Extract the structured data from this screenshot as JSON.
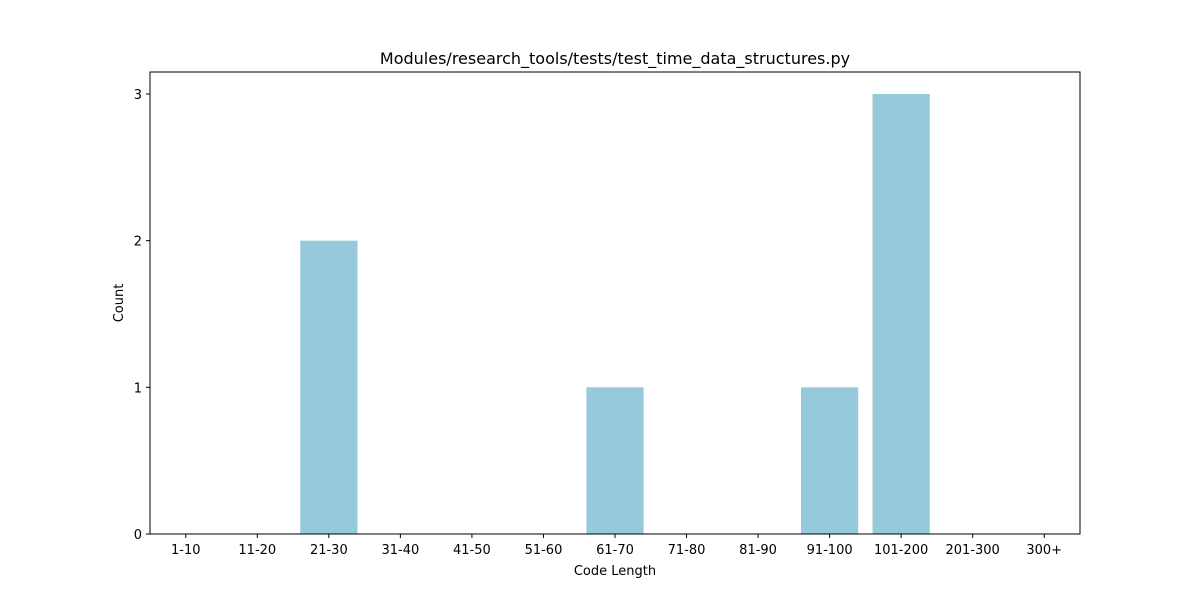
{
  "chart_data": {
    "type": "bar",
    "title": "Modules/research_tools/tests/test_time_data_structures.py",
    "xlabel": "Code Length",
    "ylabel": "Count",
    "categories": [
      "1-10",
      "11-20",
      "21-30",
      "31-40",
      "41-50",
      "51-60",
      "61-70",
      "71-80",
      "81-90",
      "91-100",
      "101-200",
      "201-300",
      "300+"
    ],
    "values": [
      0,
      0,
      2,
      0,
      0,
      0,
      1,
      0,
      0,
      1,
      3,
      0,
      0
    ],
    "yticks": [
      0,
      1,
      2,
      3
    ],
    "ylim": [
      0,
      3.15
    ],
    "grid": false,
    "bar_color": "#96c9dc"
  }
}
